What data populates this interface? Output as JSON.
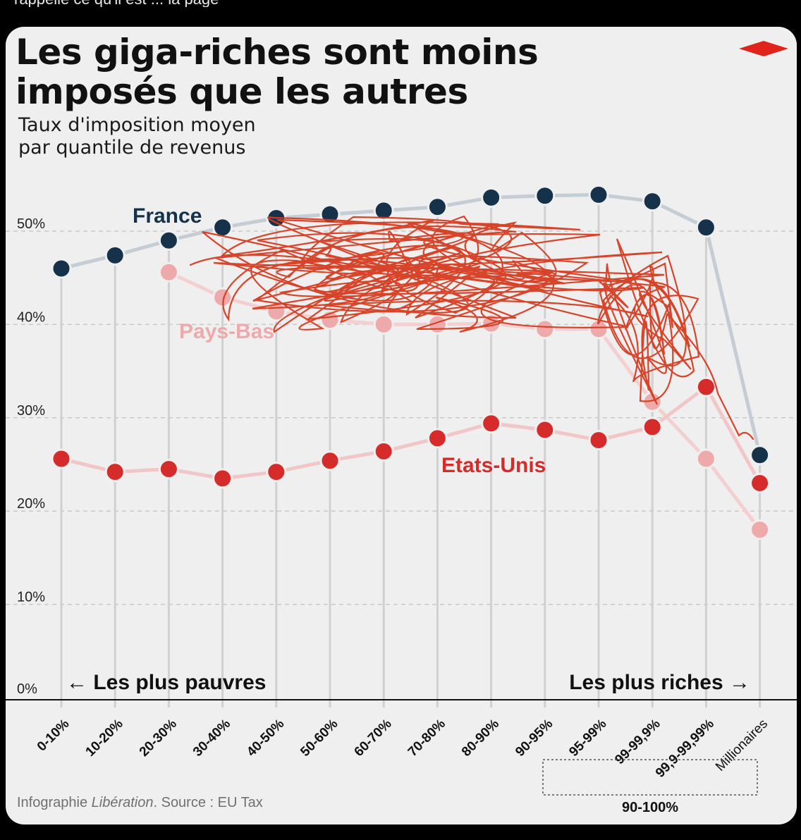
{
  "top_text": "rappelle ce qu'il est ... la page",
  "title_line1": "Les giga-riches sont moins",
  "title_line2": "imposés que les autres",
  "subtitle_line1": "Taux d'imposition moyen",
  "subtitle_line2": "par quantile de revenus",
  "left_arrow_label": "← Les plus pauvres",
  "right_arrow_label": "Les plus riches →",
  "group_label": "90-100%",
  "credit": {
    "prefix": "Infographie ",
    "publication": "Libération",
    "suffix": ". Source : EU Tax"
  },
  "colors": {
    "france": "#16324a",
    "france_line": "#c4ccd4",
    "paysbas": "#eeaaaa",
    "paysbas_line": "#f3cfcf",
    "usa": "#d52b2b",
    "usa_line": "#f1c6c6",
    "scribble": "#d63a1e",
    "logo": "#e0241b"
  },
  "chart_data": {
    "type": "line",
    "title": "Les giga-riches sont moins imposés que les autres",
    "subtitle": "Taux d'imposition moyen par quantile de revenus",
    "categories": [
      "0-10%",
      "10-20%",
      "20-30%",
      "30-40%",
      "40-50%",
      "50-60%",
      "60-70%",
      "70-80%",
      "80-90%",
      "90-95%",
      "95-99%",
      "99-99,9%",
      "99,9-99,99%",
      "Millionaires"
    ],
    "ylim": [
      0,
      55
    ],
    "yticks": [
      0,
      10,
      20,
      30,
      40,
      50
    ],
    "ytick_labels": [
      "0%",
      "10%",
      "20%",
      "30%",
      "40%",
      "50%"
    ],
    "grid": true,
    "series": [
      {
        "name": "France",
        "values": [
          46.0,
          47.4,
          49.0,
          50.4,
          51.4,
          51.8,
          52.2,
          52.6,
          53.6,
          53.8,
          53.9,
          53.2,
          50.4,
          26.0
        ]
      },
      {
        "name": "Pays-Bas",
        "values": [
          null,
          null,
          45.6,
          42.9,
          41.4,
          40.5,
          40.0,
          40.0,
          40.1,
          39.5,
          39.5,
          31.7,
          25.6,
          18.0
        ]
      },
      {
        "name": "Etats-Unis",
        "values": [
          25.6,
          24.2,
          24.5,
          23.5,
          24.2,
          25.4,
          26.4,
          27.8,
          29.4,
          28.7,
          27.6,
          29.0,
          33.3,
          23.0
        ]
      }
    ]
  }
}
